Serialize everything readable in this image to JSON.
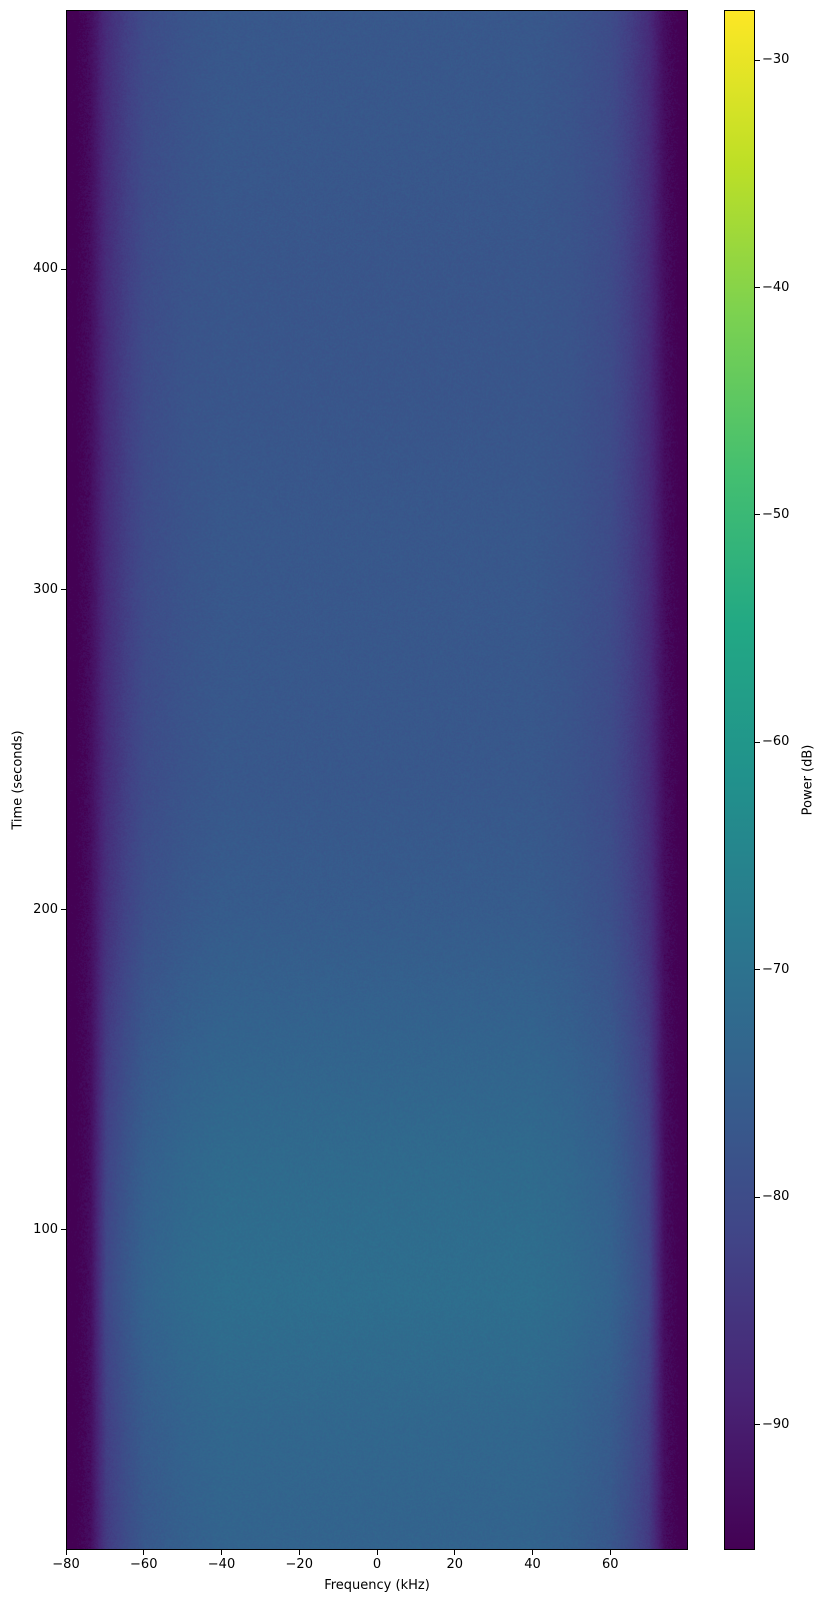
{
  "chart_data": {
    "type": "heatmap",
    "title": "",
    "xlabel": "Frequency (kHz)",
    "ylabel": "Time (seconds)",
    "colorbar_label": "Power (dB)",
    "colormap": "viridis",
    "xlim": [
      -80,
      80
    ],
    "ylim": [
      0,
      481
    ],
    "clim": [
      -95.5,
      -27.8
    ],
    "xticks": [
      -80,
      -60,
      -40,
      -20,
      0,
      20,
      40,
      60
    ],
    "xtick_labels": [
      "−80",
      "−60",
      "−40",
      "−20",
      "0",
      "20",
      "40",
      "60"
    ],
    "yticks": [
      100,
      200,
      300,
      400
    ],
    "ytick_labels": [
      "100",
      "200",
      "300",
      "400"
    ],
    "cticks": [
      -30,
      -40,
      -50,
      -60,
      -70,
      -80,
      -90
    ],
    "ctick_labels": [
      "−30",
      "−40",
      "−50",
      "−60",
      "−70",
      "−80",
      "−90"
    ],
    "freqs_khz": [
      -78,
      -74,
      -70,
      -65,
      -60,
      -50,
      -40,
      -20,
      0,
      20,
      40,
      50,
      60,
      65,
      70,
      74,
      78
    ],
    "times_s": [
      0,
      40,
      80,
      120,
      160,
      200,
      240,
      280,
      320,
      360,
      400,
      440,
      480
    ],
    "power_db": [
      [
        -95,
        -93,
        -84,
        -80,
        -77,
        -75,
        -74,
        -74,
        -74,
        -74,
        -74,
        -75,
        -77,
        -80,
        -84,
        -93,
        -95
      ],
      [
        -95,
        -93,
        -83,
        -79,
        -76,
        -74,
        -73,
        -73,
        -73,
        -73,
        -73,
        -74,
        -76,
        -79,
        -83,
        -93,
        -95
      ],
      [
        -95,
        -93,
        -81,
        -77,
        -74,
        -72,
        -71,
        -71,
        -71,
        -71,
        -71,
        -72,
        -74,
        -77,
        -81,
        -93,
        -95
      ],
      [
        -95,
        -93,
        -82,
        -78,
        -75,
        -73,
        -72,
        -72,
        -72,
        -72,
        -72,
        -73,
        -75,
        -78,
        -82,
        -93,
        -95
      ],
      [
        -95,
        -93,
        -84,
        -80,
        -77,
        -75,
        -74,
        -74,
        -74,
        -74,
        -74,
        -75,
        -77,
        -80,
        -84,
        -93,
        -95
      ],
      [
        -95,
        -93,
        -86,
        -82,
        -79,
        -77,
        -76,
        -76,
        -76,
        -76,
        -76,
        -77,
        -79,
        -82,
        -86,
        -93,
        -95
      ],
      [
        -95,
        -93,
        -87,
        -83,
        -80,
        -78,
        -77,
        -77,
        -77,
        -77,
        -77,
        -78,
        -80,
        -83,
        -87,
        -93,
        -95
      ],
      [
        -95,
        -93,
        -87,
        -83,
        -80,
        -78,
        -77,
        -77,
        -77,
        -77,
        -77,
        -78,
        -80,
        -83,
        -87,
        -93,
        -95
      ],
      [
        -95,
        -93,
        -87,
        -83,
        -80,
        -78,
        -77,
        -77,
        -77,
        -77,
        -77,
        -78,
        -80,
        -83,
        -87,
        -93,
        -95
      ],
      [
        -95,
        -93,
        -87,
        -83,
        -80,
        -78,
        -77.5,
        -77.5,
        -77.5,
        -77.5,
        -77.5,
        -78,
        -80,
        -83,
        -87,
        -93,
        -95
      ],
      [
        -95,
        -93,
        -87,
        -83,
        -80,
        -78,
        -77.5,
        -77.5,
        -77.5,
        -77.5,
        -77.5,
        -78,
        -80,
        -83,
        -87,
        -93,
        -95
      ],
      [
        -95,
        -93,
        -87,
        -83,
        -80,
        -78,
        -77,
        -77,
        -77,
        -77,
        -77,
        -78,
        -80,
        -83,
        -87,
        -93,
        -95
      ],
      [
        -95,
        -93,
        -87,
        -83,
        -80,
        -78,
        -77,
        -77,
        -77,
        -77,
        -77,
        -78,
        -80,
        -83,
        -87,
        -93,
        -95
      ]
    ],
    "grid": false,
    "colorbar_placement": "right"
  }
}
